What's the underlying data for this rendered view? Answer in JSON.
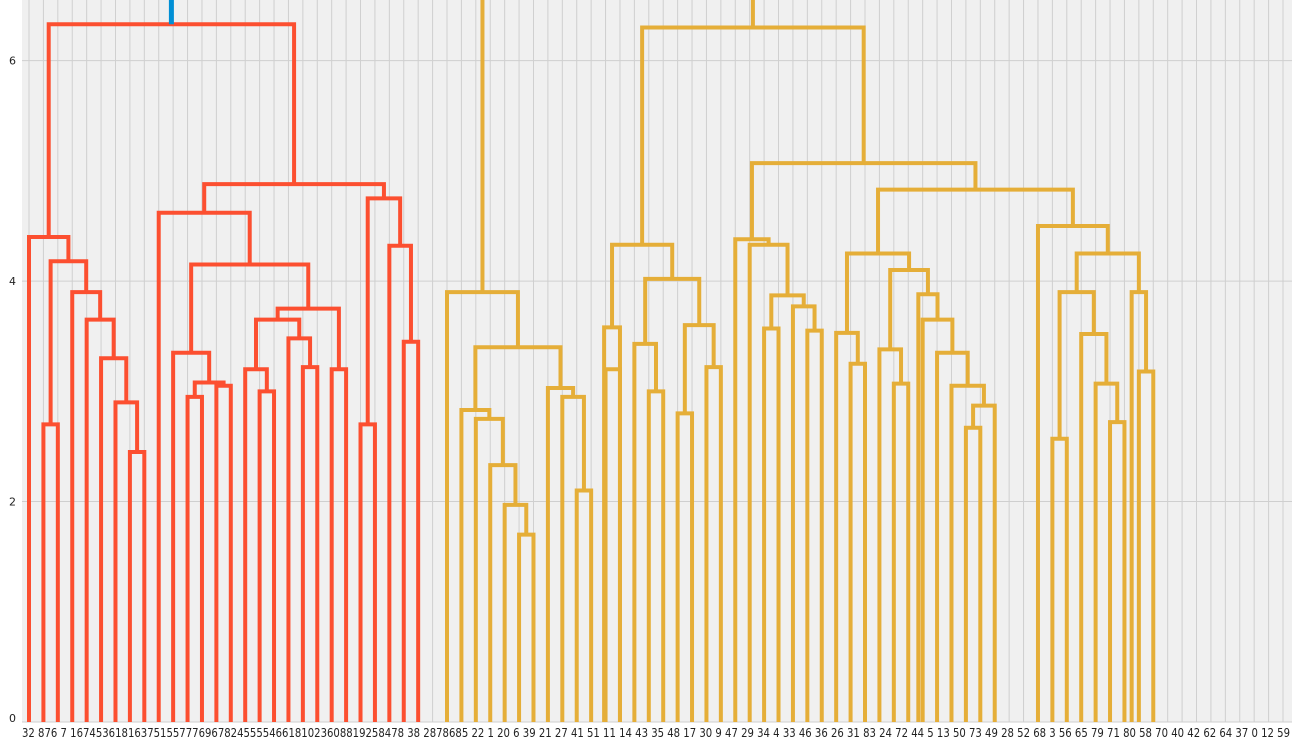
{
  "chart_data": {
    "type": "dendrogram",
    "ylim": [
      0,
      6.55
    ],
    "yticks": [
      0,
      2,
      4,
      6
    ],
    "grid": true,
    "colors": {
      "background": "#f0f0f0",
      "grid": "#cfcfcf",
      "cluster_a": "#fc4f30",
      "cluster_b": "#e5ae38",
      "root": "#008fd5"
    },
    "leaf_labels": [
      "32",
      "87",
      "67",
      "16",
      "74",
      "53",
      "61",
      "81",
      "63",
      "75",
      "15",
      "57",
      "77",
      "69",
      "67",
      "82",
      "45",
      "55",
      "54",
      "66",
      "18",
      "10",
      "23",
      "60",
      "88",
      "19",
      "25",
      "84",
      "78",
      "38",
      "2",
      "87",
      "86",
      "85",
      "22",
      "1",
      "20",
      "6",
      "39",
      "21",
      "27",
      "41",
      "51",
      "11",
      "14",
      "43",
      "35",
      "48",
      "17",
      "30",
      "9",
      "47",
      "29",
      "34",
      "4",
      "33",
      "46",
      "36",
      "26",
      "31",
      "83",
      "24",
      "72",
      "44",
      "5",
      "13",
      "50",
      "73",
      "49",
      "28",
      "52",
      "68",
      "3",
      "56",
      "65",
      "79",
      "71",
      "80",
      "58",
      "70",
      "40",
      "42",
      "62",
      "64",
      "37",
      "0",
      "12",
      "59"
    ],
    "leaf_label_text": "32 876 7 1674536181637515577769678245555466181023608819258478 38 2878685 22 1 20 6 39 21 27 41 51 11 14 43 35 48 17 30 9 47 29 34 4 33 46 36 26 31 83 24 72 44 5 13 50 73 49 28 52 68 3 56 65 79 71 80 58 70 40 42 62 64 37 0 12 59",
    "links": [
      {
        "leaves": [
          0,
          1
        ],
        "a": 0,
        "b": 2.7,
        "h": 4.4,
        "color": "cluster_a",
        "type": "tree"
      }
    ]
  }
}
